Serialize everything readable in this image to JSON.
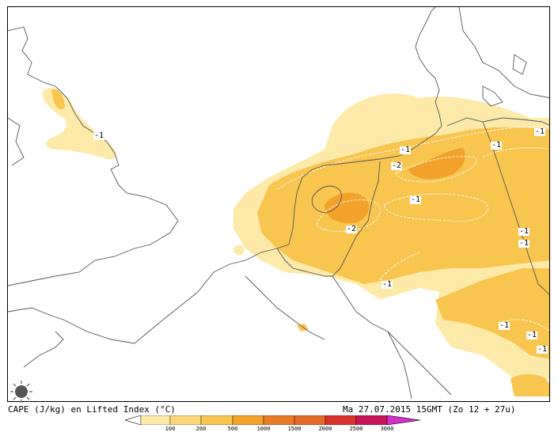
{
  "map": {
    "title_left": "CAPE (J/kg) en Lifted Index (°C)",
    "title_right": "Ma 27.07.2015 15GMT (Zo 12 + 27u)",
    "colors": {
      "cape_100": "#fde9a8",
      "cape_200": "#fad77a",
      "cape_500": "#f8c54e",
      "cape_1000": "#f2a12a",
      "cape_1500": "#e56a2a",
      "cape_2000": "#d9322a",
      "cape_2500": "#c9145a",
      "cape_3000": "#d62ec8",
      "coastline": "#555555",
      "contour": "#ffffff"
    },
    "colorbar_labels": [
      "100",
      "200",
      "500",
      "1000",
      "1500",
      "2000",
      "2500",
      "3000"
    ],
    "contour_labels": [
      "-1",
      "-1",
      "-2",
      "-1",
      "-2",
      "-1",
      "-1",
      "-1",
      "-1",
      "-1",
      "-1",
      "-1",
      "-1"
    ]
  }
}
